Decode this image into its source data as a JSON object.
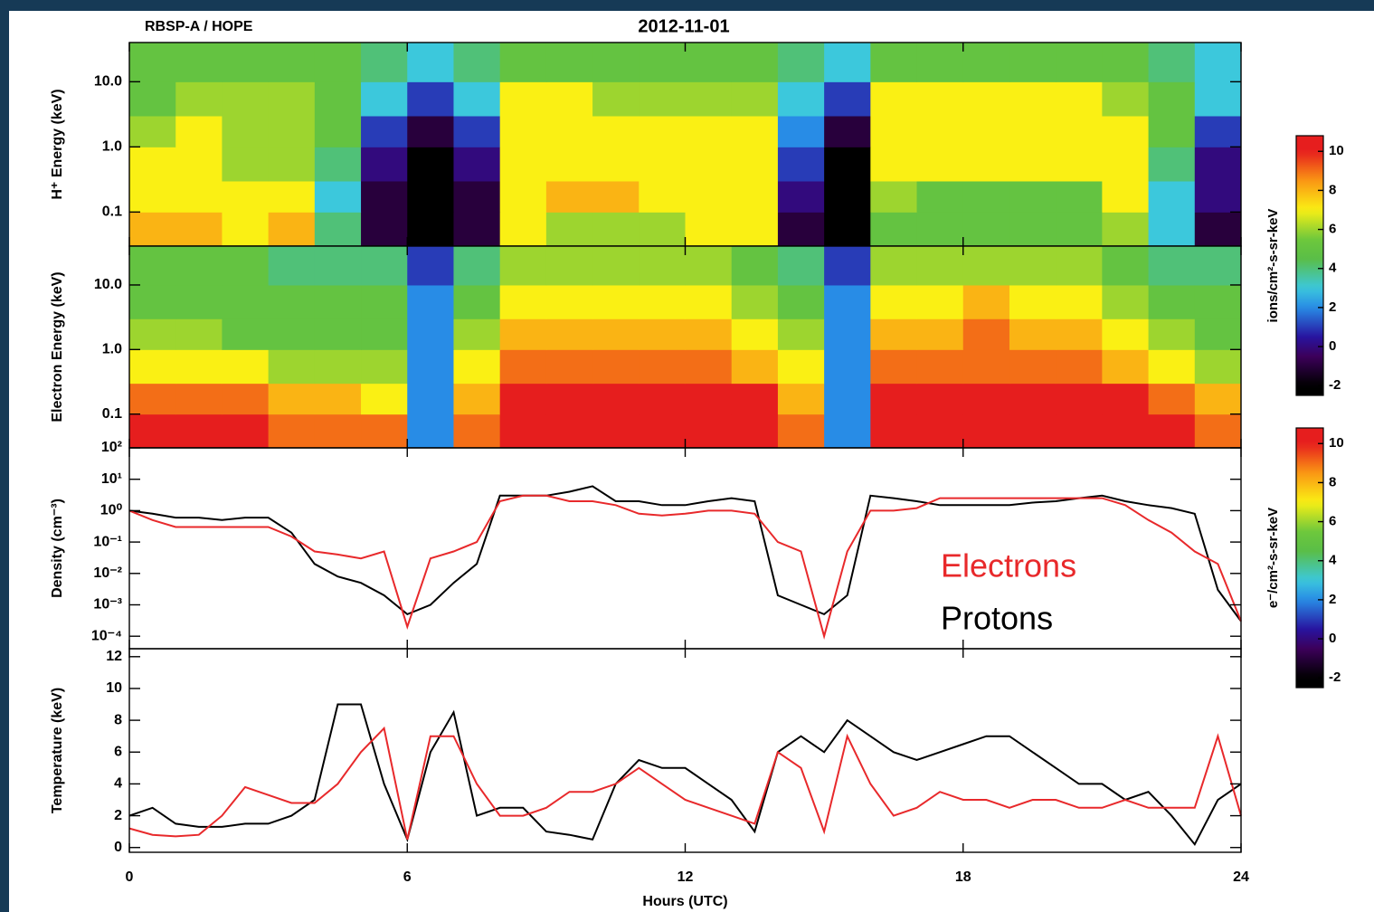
{
  "chart_data": [
    {
      "type": "heatmap",
      "title": "2012-11-01",
      "subtitle": "RBSP-A / HOPE",
      "ylabel": "H⁺ Energy (keV)",
      "yscale": "log",
      "xlim": [
        0,
        24
      ],
      "xticks": [
        0,
        6,
        12,
        18,
        24
      ],
      "ylim": [
        0.03,
        40
      ],
      "yticks": [
        0.1,
        {
          "value": 1,
          "label": "1.0"
        },
        {
          "value": 10,
          "label": "10.0"
        }
      ],
      "x_bins": [
        0,
        1,
        2,
        3,
        4,
        5,
        6,
        7,
        8,
        9,
        10,
        11,
        12,
        13,
        14,
        15,
        16,
        17,
        18,
        19,
        20,
        21,
        22,
        23,
        24
      ],
      "y_bins": [
        0.03,
        0.1,
        0.3,
        1,
        3,
        10,
        40
      ],
      "z": [
        [
          8,
          8,
          7,
          8,
          4,
          -1,
          -2,
          -1,
          7,
          6,
          6,
          6,
          7,
          7,
          -1,
          -2,
          5,
          5,
          5,
          5,
          5,
          6,
          3,
          -1
        ],
        [
          7,
          7,
          7,
          7,
          3,
          -1,
          -2,
          -1,
          7,
          8,
          8,
          7,
          7,
          7,
          0,
          -2,
          6,
          5,
          5,
          5,
          5,
          7,
          3,
          0
        ],
        [
          7,
          7,
          6,
          6,
          4,
          0,
          -2,
          0,
          7,
          7,
          7,
          7,
          7,
          7,
          1,
          -2,
          7,
          7,
          7,
          7,
          7,
          7,
          4,
          0
        ],
        [
          6,
          7,
          6,
          6,
          5,
          1,
          -1,
          1,
          7,
          7,
          7,
          7,
          7,
          7,
          2,
          -1,
          7,
          7,
          7,
          7,
          7,
          7,
          5,
          1
        ],
        [
          5,
          6,
          6,
          6,
          5,
          3,
          1,
          3,
          7,
          7,
          6,
          6,
          6,
          6,
          3,
          1,
          7,
          7,
          7,
          7,
          7,
          6,
          5,
          3
        ],
        [
          5,
          5,
          5,
          5,
          5,
          4,
          3,
          4,
          5,
          5,
          5,
          5,
          5,
          5,
          4,
          3,
          5,
          5,
          5,
          5,
          5,
          5,
          4,
          3
        ]
      ],
      "zlim": [
        -2.5,
        10.8
      ],
      "zticks": [
        -2,
        0,
        2,
        4,
        6,
        8,
        10
      ],
      "zlabel": "ions/cm²-s-sr-keV"
    },
    {
      "type": "heatmap",
      "ylabel": "Electron Energy (keV)",
      "yscale": "log",
      "xlim": [
        0,
        24
      ],
      "xticks": [
        0,
        6,
        12,
        18,
        24
      ],
      "ylim": [
        0.03,
        40
      ],
      "yticks": [
        0.1,
        {
          "value": 1,
          "label": "1.0"
        },
        {
          "value": 10,
          "label": "10.0"
        }
      ],
      "x_bins": [
        0,
        1,
        2,
        3,
        4,
        5,
        6,
        7,
        8,
        9,
        10,
        11,
        12,
        13,
        14,
        15,
        16,
        17,
        18,
        19,
        20,
        21,
        22,
        23,
        24
      ],
      "y_bins": [
        0.03,
        0.1,
        0.3,
        1,
        3,
        10,
        40
      ],
      "z": [
        [
          10,
          10,
          10,
          9,
          9,
          9,
          2,
          9,
          10,
          10,
          10,
          10,
          10,
          10,
          9,
          2,
          10,
          10,
          10,
          10,
          10,
          10,
          10,
          9
        ],
        [
          9,
          9,
          9,
          8,
          8,
          7,
          2,
          8,
          10,
          10,
          10,
          10,
          10,
          10,
          8,
          2,
          10,
          10,
          10,
          10,
          10,
          10,
          9,
          8
        ],
        [
          7,
          7,
          7,
          6,
          6,
          6,
          2,
          7,
          9,
          9,
          9,
          9,
          9,
          8,
          7,
          2,
          9,
          9,
          9,
          9,
          9,
          8,
          7,
          6
        ],
        [
          6,
          6,
          5,
          5,
          5,
          5,
          2,
          6,
          8,
          8,
          8,
          8,
          8,
          7,
          6,
          2,
          8,
          8,
          9,
          8,
          8,
          7,
          6,
          5
        ],
        [
          5,
          5,
          5,
          5,
          5,
          5,
          2,
          5,
          7,
          7,
          7,
          7,
          7,
          6,
          5,
          2,
          7,
          7,
          8,
          7,
          7,
          6,
          5,
          5
        ],
        [
          5,
          5,
          5,
          4,
          4,
          4,
          1,
          4,
          6,
          6,
          6,
          6,
          6,
          5,
          4,
          1,
          6,
          6,
          6,
          6,
          6,
          5,
          4,
          4
        ]
      ],
      "zlim": [
        -2.5,
        10.8
      ],
      "zticks": [
        -2,
        0,
        2,
        4,
        6,
        8,
        10
      ],
      "zlabel": "e⁻/cm²-s-sr-keV"
    },
    {
      "type": "line",
      "ylabel": "Density (cm⁻³)",
      "yscale": "log",
      "xlim": [
        0,
        24
      ],
      "xticks": [
        0,
        6,
        12,
        18,
        24
      ],
      "ylim": [
        4e-05,
        100
      ],
      "yticks": [
        {
          "value": 0.0001,
          "label": "10⁻⁴"
        },
        {
          "value": 0.001,
          "label": "10⁻³"
        },
        {
          "value": 0.01,
          "label": "10⁻²"
        },
        {
          "value": 0.1,
          "label": "10⁻¹"
        },
        {
          "value": 1,
          "label": "10⁰"
        },
        {
          "value": 10,
          "label": "10¹"
        },
        {
          "value": 100,
          "label": "10²"
        }
      ],
      "x": [
        0,
        0.5,
        1,
        1.5,
        2,
        2.5,
        3,
        3.5,
        4,
        4.5,
        5,
        5.5,
        6,
        6.5,
        7,
        7.5,
        8,
        8.5,
        9,
        9.5,
        10,
        10.5,
        11,
        11.5,
        12,
        12.5,
        13,
        13.5,
        14,
        14.5,
        15,
        15.5,
        16,
        16.5,
        17,
        17.5,
        18,
        18.5,
        19,
        19.5,
        20,
        20.5,
        21,
        21.5,
        22,
        22.5,
        23,
        23.5,
        24
      ],
      "series": [
        {
          "name": "Electrons",
          "color": "#e8292b",
          "values": [
            1.0,
            0.5,
            0.3,
            0.3,
            0.3,
            0.3,
            0.3,
            0.15,
            0.05,
            0.04,
            0.03,
            0.05,
            0.0002,
            0.03,
            0.05,
            0.1,
            2,
            3,
            3,
            2,
            2,
            1.5,
            0.8,
            0.7,
            0.8,
            1.0,
            1.0,
            0.8,
            0.1,
            0.05,
            0.0001,
            0.05,
            1,
            1,
            1.2,
            2.5,
            2.5,
            2.5,
            2.5,
            2.5,
            2.5,
            2.5,
            2.5,
            1.5,
            0.5,
            0.2,
            0.05,
            0.02,
            0.0003
          ]
        },
        {
          "name": "Protons",
          "color": "#000000",
          "values": [
            1,
            0.8,
            0.6,
            0.6,
            0.5,
            0.6,
            0.6,
            0.2,
            0.02,
            0.008,
            0.005,
            0.002,
            0.0005,
            0.001,
            0.005,
            0.02,
            3,
            3,
            3,
            4,
            6,
            2,
            2,
            1.5,
            1.5,
            2,
            2.5,
            2,
            0.002,
            0.001,
            0.0005,
            0.002,
            3,
            2.5,
            2,
            1.5,
            1.5,
            1.5,
            1.5,
            1.8,
            2,
            2.5,
            3,
            2,
            1.5,
            1.2,
            0.8,
            0.003,
            0.0003
          ]
        }
      ]
    },
    {
      "type": "line",
      "ylabel": "Temperature (keV)",
      "xlabel": "Hours (UTC)",
      "xlim": [
        0,
        24
      ],
      "xticks": [
        0,
        6,
        12,
        18,
        24
      ],
      "ylim": [
        -0.3,
        12.5
      ],
      "yticks": [
        0,
        2,
        4,
        6,
        8,
        10,
        12
      ],
      "x": [
        0,
        0.5,
        1,
        1.5,
        2,
        2.5,
        3,
        3.5,
        4,
        4.5,
        5,
        5.5,
        6,
        6.5,
        7,
        7.5,
        8,
        8.5,
        9,
        9.5,
        10,
        10.5,
        11,
        11.5,
        12,
        12.5,
        13,
        13.5,
        14,
        14.5,
        15,
        15.5,
        16,
        16.5,
        17,
        17.5,
        18,
        18.5,
        19,
        19.5,
        20,
        20.5,
        21,
        21.5,
        22,
        22.5,
        23,
        23.5,
        24
      ],
      "series": [
        {
          "color": "#e8292b",
          "values": [
            1.2,
            0.8,
            0.7,
            0.8,
            2,
            3.8,
            3.3,
            2.8,
            2.8,
            4,
            6,
            7.5,
            0.5,
            7,
            7,
            4,
            2,
            2,
            2.5,
            3.5,
            3.5,
            4,
            5,
            4,
            3,
            2.5,
            2,
            1.5,
            6,
            5,
            1,
            7,
            4,
            2,
            2.5,
            3.5,
            3,
            3,
            2.5,
            3,
            3,
            2.5,
            2.5,
            3,
            2.5,
            2.5,
            2.5,
            7,
            2
          ]
        },
        {
          "color": "#000000",
          "values": [
            2,
            2.5,
            1.5,
            1.3,
            1.3,
            1.5,
            1.5,
            2,
            3,
            9,
            9,
            4,
            0.5,
            6,
            8.5,
            2,
            2.5,
            2.5,
            1,
            0.8,
            0.5,
            4,
            5.5,
            5,
            5,
            4,
            3,
            1,
            6,
            7,
            6,
            8,
            7,
            6,
            5.5,
            6,
            6.5,
            7,
            7,
            6,
            5,
            4,
            4,
            3,
            3.5,
            2,
            0.2,
            3,
            4
          ]
        }
      ]
    }
  ]
}
